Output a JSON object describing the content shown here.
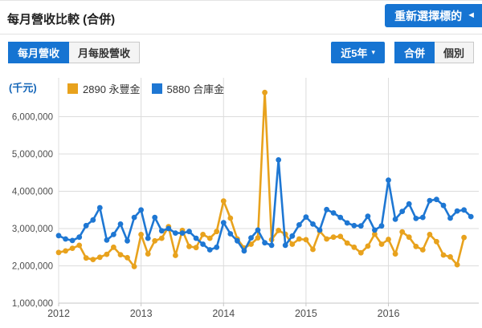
{
  "header": {
    "title": "每月營收比較 (合併)",
    "reselect_label": "重新選擇標的",
    "reselect_arrow": "◄"
  },
  "controls": {
    "tabs": [
      {
        "label": "每月營收",
        "active": true
      },
      {
        "label": "月每股營收",
        "active": false
      }
    ],
    "range_button": {
      "label": "近5年",
      "caret": "▾"
    },
    "mode_buttons": [
      {
        "label": "合併",
        "active": true
      },
      {
        "label": "個別",
        "active": false
      }
    ]
  },
  "colors": {
    "accent_blue": "#1674d2",
    "series_orange": "#e8a21d",
    "series_blue": "#1e77d3",
    "gridline": "#dcdcdc",
    "axis_line": "#c6c6c6",
    "tick_text": "#4d4d4d"
  },
  "chart_data": {
    "type": "line",
    "unit_label": "(千元)",
    "x_tick_labels": [
      "2012",
      "2013",
      "2014",
      "2015",
      "2016"
    ],
    "months_start": "2012-01",
    "y_ticks": [
      1000000,
      2000000,
      3000000,
      4000000,
      5000000,
      6000000
    ],
    "y_tick_labels": [
      "1,000,000",
      "2,000,000",
      "3,000,000",
      "4,000,000",
      "5,000,000",
      "6,000,000"
    ],
    "ylim": [
      1000000,
      7150000
    ],
    "grid": true,
    "legend_position": "top",
    "series": [
      {
        "name": "2890 永豐金",
        "color": "#e8a21d",
        "values": [
          2360000,
          2400000,
          2470000,
          2550000,
          2210000,
          2170000,
          2230000,
          2310000,
          2500000,
          2300000,
          2220000,
          1980000,
          2840000,
          2320000,
          2670000,
          2740000,
          3050000,
          2280000,
          2950000,
          2520000,
          2490000,
          2840000,
          2740000,
          2920000,
          3740000,
          3280000,
          2720000,
          2480000,
          2580000,
          2750000,
          6650000,
          2700000,
          2950000,
          2850000,
          2580000,
          2720000,
          2700000,
          2440000,
          2930000,
          2720000,
          2770000,
          2790000,
          2610000,
          2500000,
          2350000,
          2530000,
          2850000,
          2580000,
          2710000,
          2320000,
          2910000,
          2770000,
          2520000,
          2430000,
          2840000,
          2650000,
          2290000,
          2240000,
          2030000,
          2760000
        ]
      },
      {
        "name": "5880 合庫金",
        "color": "#1e77d3",
        "values": [
          2810000,
          2720000,
          2680000,
          2770000,
          3080000,
          3230000,
          3560000,
          2690000,
          2840000,
          3120000,
          2670000,
          3300000,
          3500000,
          2740000,
          3300000,
          2940000,
          3000000,
          2880000,
          2880000,
          2920000,
          2740000,
          2580000,
          2430000,
          2500000,
          3160000,
          2860000,
          2670000,
          2400000,
          2750000,
          2960000,
          2620000,
          2550000,
          4840000,
          2550000,
          2800000,
          3100000,
          3310000,
          3120000,
          2960000,
          3510000,
          3420000,
          3300000,
          3150000,
          3080000,
          3070000,
          3330000,
          2960000,
          3070000,
          4300000,
          3250000,
          3460000,
          3660000,
          3270000,
          3300000,
          3750000,
          3780000,
          3620000,
          3280000,
          3470000,
          3500000,
          3320000
        ]
      }
    ]
  }
}
